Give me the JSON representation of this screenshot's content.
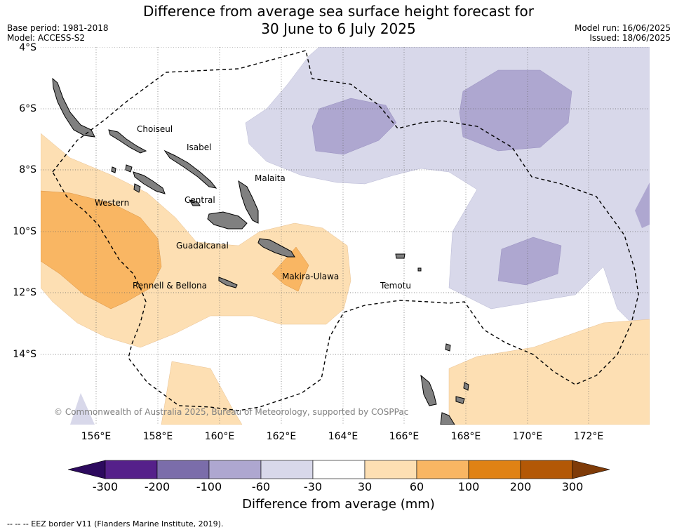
{
  "header": {
    "title_line1": "Difference from average sea surface height forecast for",
    "title_line2": "30 June to 6 July 2025",
    "base_period": "Base period: 1981-2018",
    "model": "Model: ACCESS-S2",
    "model_run": "Model run: 16/06/2025",
    "issued": "Issued: 18/06/2025"
  },
  "map": {
    "lat_labels": [
      "4°S",
      "6°S",
      "8°S",
      "10°S",
      "12°S",
      "14°S"
    ],
    "lon_labels": [
      "156°E",
      "158°E",
      "160°E",
      "162°E",
      "164°E",
      "166°E",
      "168°E",
      "170°E",
      "172°E"
    ],
    "places": [
      "Choiseul",
      "Isabel",
      "Malaita",
      "Western",
      "Central",
      "Guadalcanal",
      "Makira-Ulawa",
      "Rennell & Bellona",
      "Temotu"
    ],
    "copyright": "© Commonwealth of Australia 2025, Bureau of Meteorology, supported by COSPPac",
    "land_color": "#808080",
    "grid": "dotted"
  },
  "colorbar": {
    "colors": [
      "#2d0a5e",
      "#55208a",
      "#7b6daa",
      "#aea7d0",
      "#d8d8ea",
      "#ffffff",
      "#fddfb3",
      "#f9b663",
      "#e08214",
      "#b35806",
      "#7f3b08"
    ],
    "labels": [
      "-300",
      "-200",
      "-100",
      "-60",
      "-30",
      "30",
      "60",
      "100",
      "200",
      "300"
    ],
    "title": "Difference from average (mm)"
  },
  "legend_note": "--  --  -- EEZ border V11 (Flanders Marine Institute, 2019)."
}
